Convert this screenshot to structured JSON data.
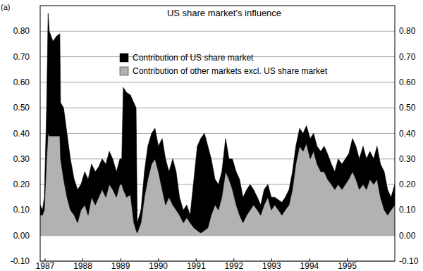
{
  "chart_data": {
    "type": "area",
    "stacked": true,
    "grid": true,
    "title": "US share market's influence",
    "annotations": [
      "(a)"
    ],
    "x": [
      1986.87,
      1986.93,
      1986.98,
      1987.04,
      1987.08,
      1987.11,
      1987.21,
      1987.3,
      1987.39,
      1987.41,
      1987.49,
      1987.58,
      1987.67,
      1987.77,
      1987.86,
      1987.95,
      1988.05,
      1988.14,
      1988.23,
      1988.33,
      1988.42,
      1988.51,
      1988.61,
      1988.7,
      1988.79,
      1988.89,
      1988.98,
      1989.03,
      1989.07,
      1989.16,
      1989.26,
      1989.35,
      1989.41,
      1989.44,
      1989.54,
      1989.63,
      1989.72,
      1989.82,
      1989.91,
      1990.0,
      1990.1,
      1990.19,
      1990.28,
      1990.38,
      1990.47,
      1990.56,
      1990.66,
      1990.75,
      1990.84,
      1990.94,
      1991.03,
      1991.12,
      1991.22,
      1991.31,
      1991.4,
      1991.5,
      1991.59,
      1991.68,
      1991.78,
      1991.87,
      1991.96,
      1992.06,
      1992.15,
      1992.24,
      1992.34,
      1992.43,
      1992.52,
      1992.62,
      1992.71,
      1992.8,
      1992.9,
      1992.99,
      1993.08,
      1993.18,
      1993.27,
      1993.36,
      1993.46,
      1993.55,
      1993.64,
      1993.74,
      1993.83,
      1993.92,
      1994.02,
      1994.11,
      1994.2,
      1994.3,
      1994.39,
      1994.48,
      1994.58,
      1994.67,
      1994.76,
      1994.86,
      1994.95,
      1995.04,
      1995.14,
      1995.23,
      1995.32,
      1995.42,
      1995.51,
      1995.6,
      1995.7,
      1995.79,
      1995.88,
      1995.98,
      1996.07,
      1996.16,
      1996.26
    ],
    "series": [
      {
        "name": "Contribution of other markets excl. US share market",
        "color": "#b2b2b2",
        "values": [
          0.08,
          0.08,
          0.1,
          0.3,
          0.4,
          0.39,
          0.39,
          0.39,
          0.39,
          0.3,
          0.22,
          0.15,
          0.1,
          0.08,
          0.05,
          0.1,
          0.12,
          0.08,
          0.15,
          0.12,
          0.15,
          0.18,
          0.15,
          0.2,
          0.18,
          0.15,
          0.2,
          0.2,
          0.18,
          0.15,
          0.16,
          0.05,
          0.02,
          0.01,
          0.05,
          0.15,
          0.22,
          0.28,
          0.3,
          0.25,
          0.18,
          0.12,
          0.15,
          0.12,
          0.1,
          0.08,
          0.05,
          0.07,
          0.05,
          0.03,
          0.02,
          0.01,
          0.02,
          0.03,
          0.08,
          0.12,
          0.1,
          0.15,
          0.25,
          0.22,
          0.18,
          0.12,
          0.08,
          0.05,
          0.08,
          0.1,
          0.12,
          0.1,
          0.08,
          0.12,
          0.15,
          0.1,
          0.12,
          0.1,
          0.08,
          0.1,
          0.12,
          0.18,
          0.28,
          0.35,
          0.33,
          0.36,
          0.3,
          0.33,
          0.28,
          0.25,
          0.25,
          0.22,
          0.2,
          0.18,
          0.2,
          0.18,
          0.2,
          0.22,
          0.25,
          0.22,
          0.18,
          0.2,
          0.18,
          0.22,
          0.2,
          0.22,
          0.15,
          0.1,
          0.08,
          0.1,
          0.12
        ]
      },
      {
        "name": "Contribution of US share market",
        "color": "#000000",
        "values": [
          0.04,
          0.02,
          0.05,
          0.2,
          0.47,
          0.41,
          0.37,
          0.39,
          0.4,
          0.22,
          0.28,
          0.25,
          0.2,
          0.14,
          0.13,
          0.1,
          0.13,
          0.14,
          0.13,
          0.13,
          0.12,
          0.12,
          0.13,
          0.13,
          0.12,
          0.1,
          0.1,
          0.1,
          0.4,
          0.41,
          0.39,
          0.47,
          0.48,
          0.04,
          0.05,
          0.1,
          0.13,
          0.12,
          0.12,
          0.1,
          0.2,
          0.18,
          0.1,
          0.18,
          0.15,
          0.07,
          0.05,
          0.05,
          0.03,
          0.19,
          0.33,
          0.37,
          0.38,
          0.32,
          0.22,
          0.1,
          0.1,
          0.1,
          0.13,
          0.08,
          0.12,
          0.13,
          0.14,
          0.1,
          0.1,
          0.1,
          0.06,
          0.05,
          0.04,
          0.06,
          0.05,
          0.05,
          0.03,
          0.04,
          0.05,
          0.05,
          0.06,
          0.07,
          0.07,
          0.07,
          0.07,
          0.07,
          0.08,
          0.07,
          0.07,
          0.08,
          0.1,
          0.1,
          0.08,
          0.07,
          0.1,
          0.1,
          0.1,
          0.1,
          0.13,
          0.13,
          0.12,
          0.15,
          0.12,
          0.11,
          0.1,
          0.13,
          0.13,
          0.15,
          0.1,
          0.05,
          0.08
        ]
      }
    ],
    "xlim": [
      1986.87,
      1996.26
    ],
    "xticks": [
      1987,
      1988,
      1989,
      1990,
      1991,
      1992,
      1993,
      1994,
      1995
    ],
    "ylim": [
      -0.1,
      0.9
    ],
    "yticks": [
      {
        "value": -0.1,
        "label": "-0.10"
      },
      {
        "value": 0,
        "label": "0.00"
      },
      {
        "value": 0.1,
        "label": "0.10"
      },
      {
        "value": 0.2,
        "label": "0.20"
      },
      {
        "value": 0.3,
        "label": "0.30"
      },
      {
        "value": 0.4,
        "label": "0.40"
      },
      {
        "value": 0.5,
        "label": "0.50"
      },
      {
        "value": 0.6,
        "label": "0.60"
      },
      {
        "value": 0.7,
        "label": "0.70"
      },
      {
        "value": 0.8,
        "label": "0.80"
      }
    ]
  }
}
